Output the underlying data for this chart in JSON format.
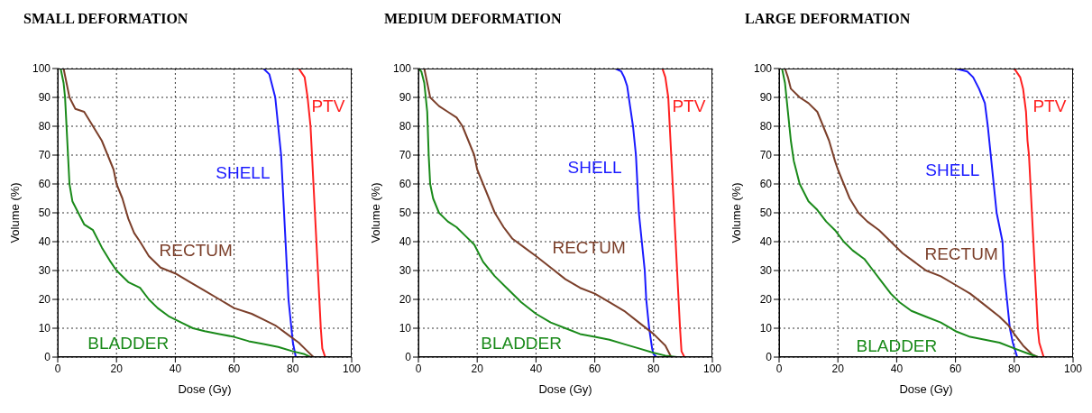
{
  "chart_data": [
    {
      "type": "line",
      "title": "SMALL DEFORMATION",
      "xlabel": "Dose (Gy)",
      "ylabel": "Volume (%)",
      "xlim": [
        0,
        100
      ],
      "ylim": [
        0,
        100
      ],
      "xticks": [
        0,
        20,
        40,
        60,
        80,
        100
      ],
      "yticks": [
        0,
        10,
        20,
        30,
        40,
        50,
        60,
        70,
        80,
        90,
        100
      ],
      "grid": true,
      "series": [
        {
          "name": "PTV",
          "color": "#ff2020",
          "x": [
            0,
            82,
            84,
            85,
            86,
            86.5,
            87,
            87.5,
            88,
            88.5,
            89,
            89.5,
            90,
            91,
            100
          ],
          "values": [
            100,
            100,
            97,
            90,
            80,
            70,
            60,
            50,
            40,
            30,
            20,
            10,
            3,
            0,
            0
          ]
        },
        {
          "name": "SHELL",
          "color": "#1a1aff",
          "x": [
            0,
            70,
            72,
            73,
            74,
            75,
            76,
            76.5,
            77,
            77.5,
            78,
            78.5,
            79.5,
            80,
            81,
            100
          ],
          "values": [
            100,
            100,
            98,
            94,
            90,
            80,
            70,
            60,
            50,
            40,
            30,
            20,
            10,
            5,
            0,
            0
          ]
        },
        {
          "name": "RECTUM",
          "color": "#7b3f2a",
          "x": [
            0,
            2,
            3,
            4,
            6,
            9,
            12,
            15,
            17,
            19,
            20,
            22,
            24,
            26,
            28,
            31,
            35,
            40,
            45,
            50,
            55,
            60,
            66,
            70,
            74,
            78,
            82,
            85,
            87,
            100
          ],
          "values": [
            100,
            100,
            95,
            90,
            86,
            85,
            80,
            75,
            70,
            65,
            60,
            55,
            48,
            43,
            40,
            35,
            31,
            29,
            26,
            23,
            20,
            17,
            15,
            13,
            11,
            8,
            5,
            2,
            0,
            0
          ]
        },
        {
          "name": "BLADDER",
          "color": "#1a8a1a",
          "x": [
            0,
            1,
            2,
            2.5,
            3,
            3.5,
            4,
            5,
            7,
            9,
            12,
            15,
            18,
            20,
            24,
            28,
            31,
            34,
            38,
            42,
            46,
            50,
            55,
            60,
            65,
            70,
            75,
            80,
            84,
            86,
            100
          ],
          "values": [
            100,
            100,
            95,
            90,
            80,
            70,
            60,
            54,
            50,
            46,
            44,
            38,
            33,
            30,
            26,
            24,
            20,
            17,
            14,
            12,
            10,
            9,
            8,
            7,
            5.5,
            4.5,
            3.5,
            2,
            1,
            0,
            0
          ]
        }
      ]
    },
    {
      "type": "line",
      "title": "MEDIUM DEFORMATION",
      "xlabel": "Dose (Gy)",
      "ylabel": "Volume (%)",
      "xlim": [
        0,
        100
      ],
      "ylim": [
        0,
        100
      ],
      "xticks": [
        0,
        20,
        40,
        60,
        80,
        100
      ],
      "yticks": [
        0,
        10,
        20,
        30,
        40,
        50,
        60,
        70,
        80,
        90,
        100
      ],
      "grid": true,
      "series": [
        {
          "name": "PTV",
          "color": "#ff2020",
          "x": [
            0,
            83,
            84,
            85,
            85.5,
            86,
            86.5,
            87,
            87.5,
            88,
            88.5,
            89,
            89.5,
            90.5,
            100
          ],
          "values": [
            100,
            100,
            97,
            90,
            80,
            70,
            60,
            50,
            40,
            30,
            20,
            10,
            2,
            0,
            0
          ]
        },
        {
          "name": "SHELL",
          "color": "#1a1aff",
          "x": [
            0,
            67,
            69,
            70,
            71,
            72,
            73,
            74,
            74.5,
            75,
            76,
            77,
            77.5,
            78.5,
            79.5,
            80,
            81,
            100
          ],
          "values": [
            100,
            100,
            99,
            97,
            94,
            87,
            80,
            70,
            60,
            50,
            40,
            30,
            20,
            10,
            3,
            1,
            0,
            0
          ]
        },
        {
          "name": "RECTUM",
          "color": "#7b3f2a",
          "x": [
            0,
            2,
            3,
            4,
            7,
            10,
            13,
            15,
            17,
            19,
            20,
            22,
            24,
            26,
            29,
            32,
            36,
            40,
            45,
            50,
            55,
            60,
            65,
            70,
            75,
            80,
            84,
            86,
            100
          ],
          "values": [
            100,
            100,
            95,
            90,
            87,
            85,
            83,
            80,
            75,
            70,
            65,
            60,
            55,
            50,
            45,
            41,
            38,
            35,
            31,
            27,
            24,
            22,
            19,
            16,
            12,
            8,
            4,
            0,
            0
          ]
        },
        {
          "name": "BLADDER",
          "color": "#1a8a1a",
          "x": [
            0,
            1,
            2,
            3,
            3.5,
            4,
            5,
            7,
            10,
            13,
            16,
            19,
            22,
            26,
            30,
            35,
            40,
            45,
            50,
            55,
            60,
            65,
            70,
            75,
            80,
            84,
            88,
            100
          ],
          "values": [
            100,
            99,
            95,
            85,
            70,
            60,
            55,
            50,
            47,
            45,
            42,
            39,
            33,
            28,
            24,
            19,
            15,
            12,
            10,
            8,
            7,
            6,
            4.5,
            3,
            1.5,
            0.5,
            0,
            0
          ]
        }
      ]
    },
    {
      "type": "line",
      "title": "LARGE DEFORMATION",
      "xlabel": "Dose (Gy)",
      "ylabel": "Volume (%)",
      "xlim": [
        0,
        100
      ],
      "ylim": [
        0,
        100
      ],
      "xticks": [
        0,
        20,
        40,
        60,
        80,
        100
      ],
      "yticks": [
        0,
        10,
        20,
        30,
        40,
        50,
        60,
        70,
        80,
        90,
        100
      ],
      "grid": true,
      "series": [
        {
          "name": "PTV",
          "color": "#ff2020",
          "x": [
            0,
            80,
            82,
            83,
            84,
            84.5,
            85,
            85.5,
            86,
            86.5,
            87,
            87.5,
            88,
            88.5,
            90,
            100
          ],
          "values": [
            100,
            100,
            97,
            93,
            85,
            75,
            70,
            60,
            50,
            40,
            30,
            20,
            10,
            5,
            0,
            0
          ]
        },
        {
          "name": "SHELL",
          "color": "#1a1aff",
          "x": [
            0,
            60,
            64,
            66,
            68,
            70,
            71,
            72,
            73,
            74,
            75,
            76,
            76.5,
            77.5,
            78.5,
            79.5,
            81,
            100
          ],
          "values": [
            100,
            100,
            99,
            97,
            93,
            88,
            80,
            70,
            60,
            50,
            45,
            40,
            30,
            20,
            10,
            5,
            0,
            0
          ]
        },
        {
          "name": "RECTUM",
          "color": "#7b3f2a",
          "x": [
            0,
            2,
            3,
            4,
            7,
            10,
            13,
            15,
            17,
            19,
            20,
            22,
            24,
            27,
            30,
            34,
            38,
            42,
            46,
            50,
            55,
            60,
            65,
            70,
            75,
            78,
            80,
            83,
            86,
            88,
            100
          ],
          "values": [
            100,
            100,
            97,
            93,
            90,
            88,
            85,
            80,
            75,
            68,
            65,
            60,
            55,
            50,
            47,
            44,
            40,
            36,
            33,
            30,
            28,
            25,
            22,
            18,
            14,
            11,
            8,
            4,
            1,
            0,
            0
          ]
        },
        {
          "name": "BLADDER",
          "color": "#1a8a1a",
          "x": [
            0,
            1,
            2,
            3,
            4,
            5,
            7,
            10,
            13,
            16,
            19,
            22,
            25,
            29,
            32,
            35,
            38,
            41,
            45,
            50,
            55,
            60,
            65,
            70,
            75,
            80,
            84,
            88,
            100
          ],
          "values": [
            100,
            100,
            95,
            85,
            75,
            68,
            60,
            54,
            51,
            47,
            44,
            40,
            37,
            34,
            30,
            26,
            22,
            19,
            16,
            14,
            12,
            9,
            7,
            6,
            5,
            3,
            1.5,
            0,
            0
          ]
        }
      ]
    }
  ]
}
